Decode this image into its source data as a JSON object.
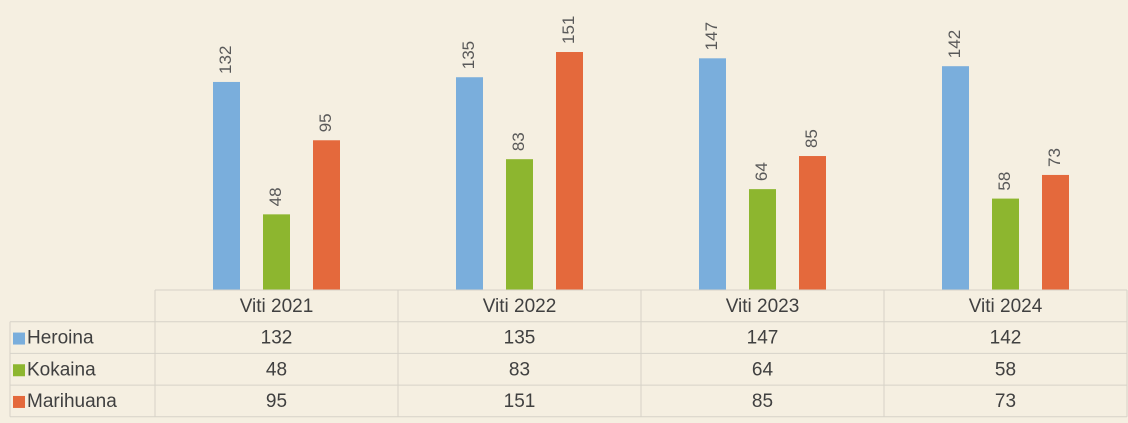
{
  "chart_data": {
    "type": "bar",
    "categories": [
      "Viti 2021",
      "Viti 2022",
      "Viti 2023",
      "Viti 2024"
    ],
    "series": [
      {
        "name": "Heroina",
        "color": "#7aaedc",
        "values": [
          132,
          135,
          147,
          142
        ]
      },
      {
        "name": "Kokaina",
        "color": "#8db62f",
        "values": [
          48,
          83,
          64,
          58
        ]
      },
      {
        "name": "Marihuana",
        "color": "#e4693c",
        "values": [
          95,
          151,
          85,
          73
        ]
      }
    ],
    "ylim": [
      0,
      184
    ],
    "data_table": true
  }
}
